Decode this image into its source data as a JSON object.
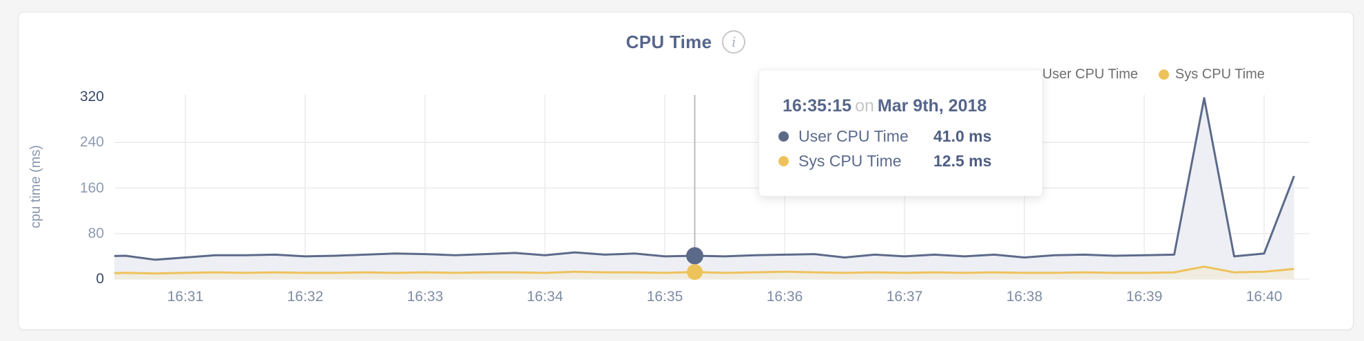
{
  "card": {
    "title": "CPU Time",
    "info_icon_glyph": "i"
  },
  "legend": [
    {
      "label": "User CPU Time",
      "color": "#5c6a89"
    },
    {
      "label": "Sys CPU Time",
      "color": "#eec25b"
    }
  ],
  "tooltip": {
    "time": "16:35:15",
    "separator": "on",
    "date": "Mar 9th, 2018",
    "rows": [
      {
        "label": "User CPU Time",
        "value": "41.0 ms",
        "color": "#5c6a89"
      },
      {
        "label": "Sys CPU Time",
        "value": "12.5 ms",
        "color": "#eec25b"
      }
    ]
  },
  "chart_data": {
    "type": "area",
    "title": "CPU Time",
    "xlabel": "",
    "ylabel": "cpu time (ms)",
    "ylim": [
      0,
      320
    ],
    "yticks": [
      0,
      80,
      160,
      240,
      320
    ],
    "xticks": [
      "16:31",
      "16:32",
      "16:33",
      "16:34",
      "16:35",
      "16:36",
      "16:37",
      "16:38",
      "16:39",
      "16:40"
    ],
    "grid": true,
    "legend_position": "top-right",
    "x": [
      "16:30:15",
      "16:30:30",
      "16:30:45",
      "16:31:00",
      "16:31:15",
      "16:31:30",
      "16:31:45",
      "16:32:00",
      "16:32:15",
      "16:32:30",
      "16:32:45",
      "16:33:00",
      "16:33:15",
      "16:33:30",
      "16:33:45",
      "16:34:00",
      "16:34:15",
      "16:34:30",
      "16:34:45",
      "16:35:00",
      "16:35:15",
      "16:35:30",
      "16:35:45",
      "16:36:00",
      "16:36:15",
      "16:36:30",
      "16:36:45",
      "16:37:00",
      "16:37:15",
      "16:37:30",
      "16:37:45",
      "16:38:00",
      "16:38:15",
      "16:38:30",
      "16:38:45",
      "16:39:00",
      "16:39:15",
      "16:39:30",
      "16:39:45",
      "16:40:00",
      "16:40:15"
    ],
    "series": [
      {
        "name": "User CPU Time",
        "color": "#5c6a89",
        "fill": "#edeff4",
        "values": [
          40,
          41,
          34,
          38,
          42,
          42,
          43,
          40,
          41,
          43,
          45,
          44,
          42,
          44,
          46,
          42,
          47,
          43,
          45,
          40,
          41,
          40,
          42,
          43,
          44,
          38,
          43,
          40,
          43,
          40,
          43,
          38,
          42,
          43,
          41,
          42,
          43,
          318,
          40,
          45,
          181
        ]
      },
      {
        "name": "Sys CPU Time",
        "color": "#eec25b",
        "fill": "#f0ecdf",
        "values": [
          10,
          11,
          10,
          11,
          12,
          11,
          12,
          11,
          11,
          12,
          11,
          12,
          11,
          12,
          12,
          11,
          13,
          12,
          12,
          11,
          12.5,
          11,
          12,
          13,
          12,
          11,
          12,
          11,
          12,
          11,
          12,
          11,
          11,
          12,
          11,
          11,
          12,
          22,
          12,
          13,
          18
        ]
      }
    ],
    "hover": {
      "time": "16:35:15",
      "index": 20,
      "values": [
        41.0,
        12.5
      ],
      "line_color": "#bdbdbd"
    },
    "grid_color": "#e9eaec"
  }
}
